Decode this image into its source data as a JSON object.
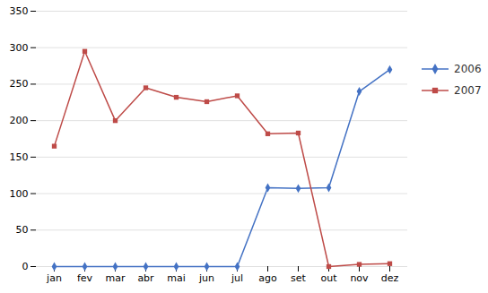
{
  "chart_data": {
    "type": "line",
    "categories": [
      "jan",
      "fev",
      "mar",
      "abr",
      "mai",
      "jun",
      "jul",
      "ago",
      "set",
      "out",
      "nov",
      "dez"
    ],
    "series": [
      {
        "name": "2006",
        "color": "#4472C4",
        "marker": "diamond",
        "values": [
          0,
          0,
          0,
          0,
          0,
          0,
          0,
          108,
          107,
          108,
          240,
          270
        ]
      },
      {
        "name": "2007",
        "color": "#BE4B48",
        "marker": "square",
        "values": [
          165,
          295,
          200,
          245,
          232,
          226,
          234,
          182,
          183,
          0,
          3,
          4
        ]
      }
    ],
    "ylim": [
      0,
      350
    ],
    "yticks": [
      0,
      50,
      100,
      150,
      200,
      250,
      300,
      350
    ],
    "grid": true,
    "legend": "right"
  }
}
